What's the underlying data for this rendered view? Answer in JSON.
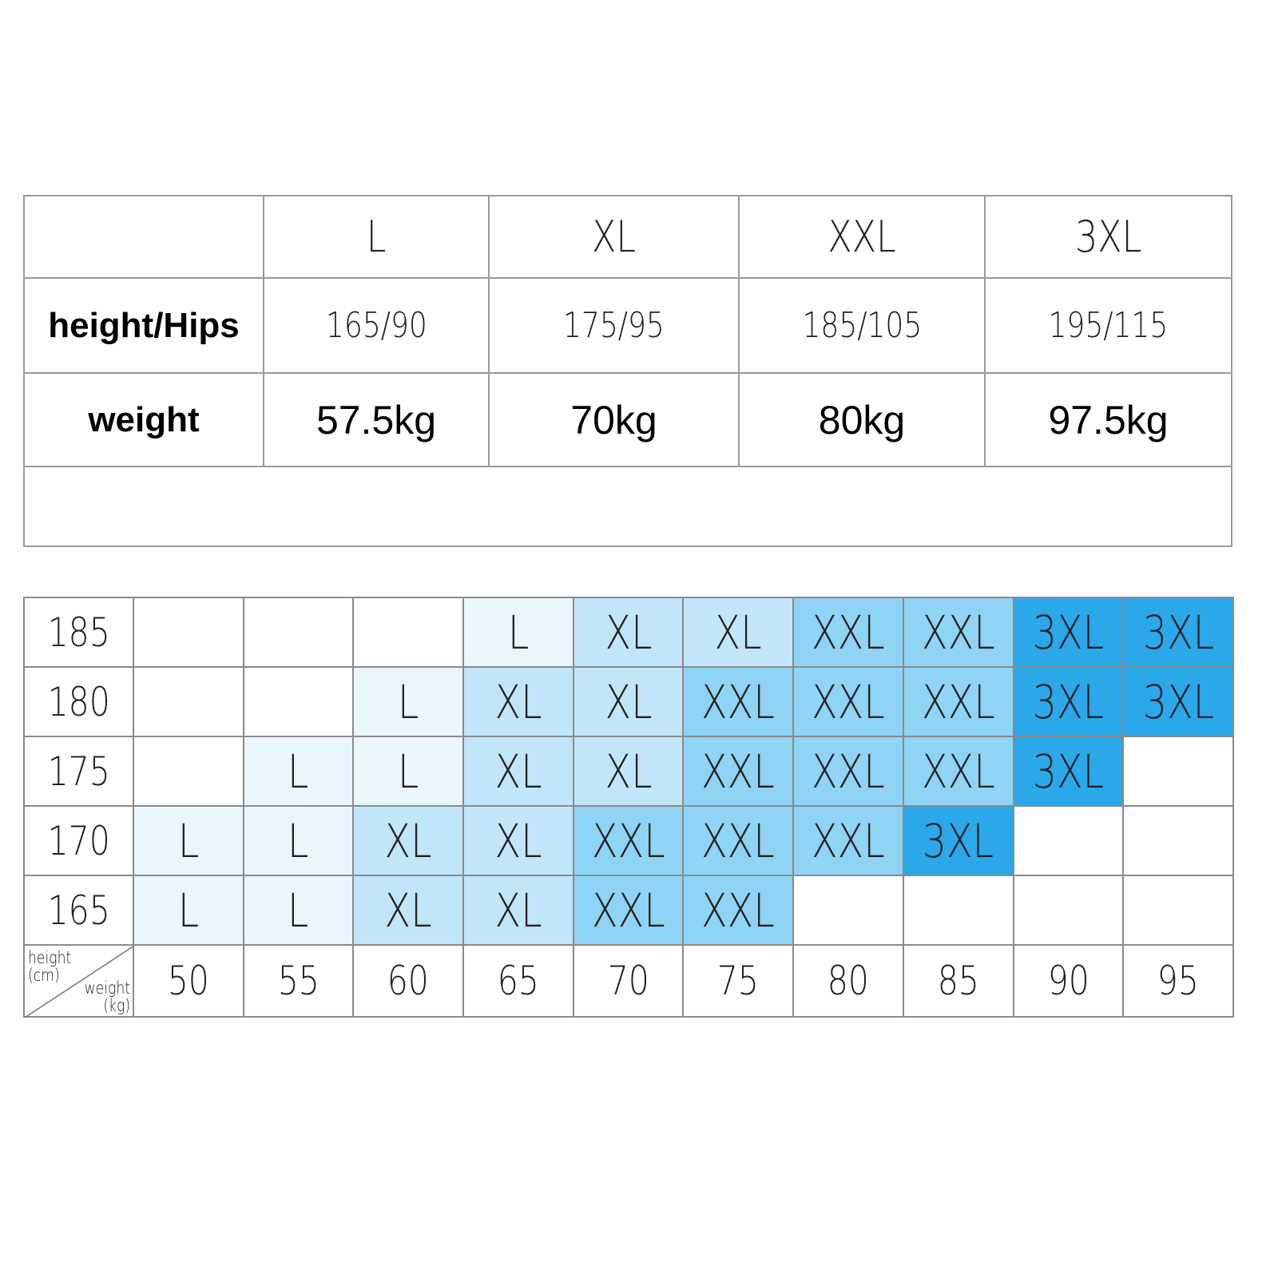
{
  "size_table": {
    "headers": [
      "",
      "L",
      "XL",
      "XXL",
      "3XL"
    ],
    "rows": [
      {
        "label": "height/Hips",
        "values": [
          "165/90",
          "175/95",
          "185/105",
          "195/115"
        ]
      },
      {
        "label": "weight",
        "values": [
          "57.5kg",
          "70kg",
          "80kg",
          "97.5kg"
        ]
      }
    ]
  },
  "grid": {
    "corner": {
      "row_axis": "height\n(cm)",
      "col_axis": "weight\n(kg)"
    },
    "weights": [
      "50",
      "55",
      "60",
      "65",
      "70",
      "75",
      "80",
      "85",
      "90",
      "95"
    ],
    "rows": [
      {
        "height": "185",
        "cells": [
          "",
          "",
          "",
          "L",
          "XL",
          "XL",
          "XXL",
          "XXL",
          "3XL",
          "3XL"
        ]
      },
      {
        "height": "180",
        "cells": [
          "",
          "",
          "L",
          "XL",
          "XL",
          "XXL",
          "XXL",
          "XXL",
          "3XL",
          "3XL"
        ]
      },
      {
        "height": "175",
        "cells": [
          "",
          "L",
          "L",
          "XL",
          "XL",
          "XXL",
          "XXL",
          "XXL",
          "3XL",
          ""
        ]
      },
      {
        "height": "170",
        "cells": [
          "L",
          "L",
          "XL",
          "XL",
          "XXL",
          "XXL",
          "XXL",
          "3XL",
          "",
          ""
        ]
      },
      {
        "height": "165",
        "cells": [
          "L",
          "L",
          "XL",
          "XL",
          "XXL",
          "XXL",
          "",
          "",
          "",
          ""
        ]
      }
    ],
    "colors": {
      "L": "#eaf6fd",
      "XL": "#c2e6f9",
      "XXL": "#8fd3f5",
      "3XL": "#2aa8ea",
      "border": "#8a8a8a"
    }
  }
}
